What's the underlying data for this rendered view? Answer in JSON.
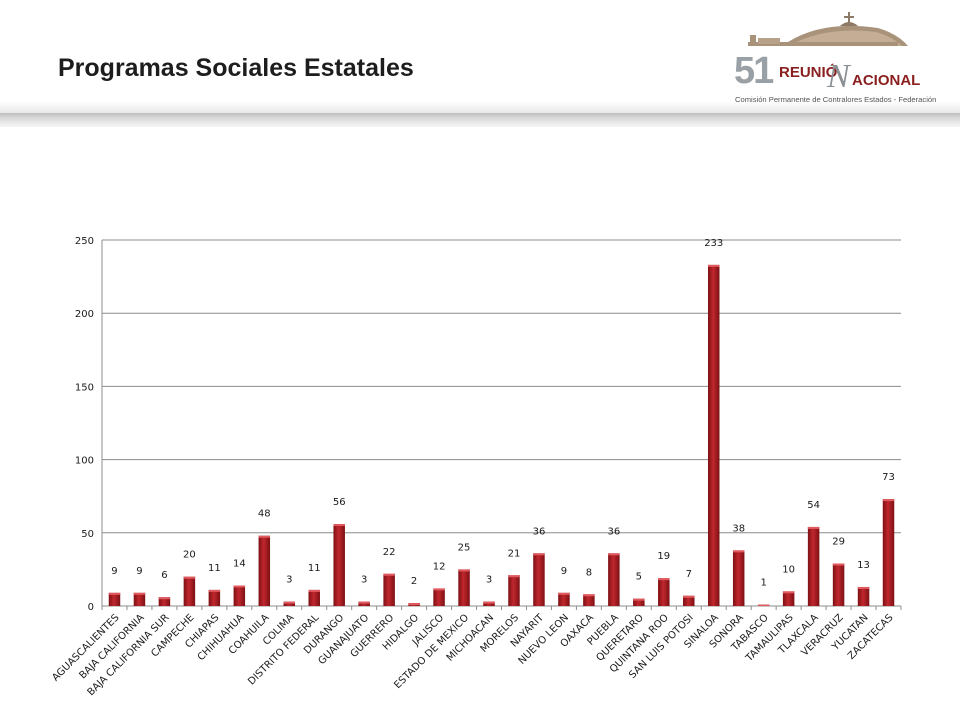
{
  "header": {
    "title": "Programas Sociales Estatales",
    "logo": {
      "number": "51",
      "word1": "REUNIÓ",
      "letter": "N",
      "word2": "ACIONAL",
      "subtitle": "Comisión Permanente de Contralores Estados - Federación"
    }
  },
  "colors": {
    "bar": "#c0272d",
    "bar_dark": "#7d1014",
    "grid": "#8c8c8c",
    "text": "#1a1a1a"
  },
  "chart_data": {
    "type": "bar",
    "categories": [
      "AGUASCALIENTES",
      "BAJA CALIFORNIA",
      "BAJA CALIFORNIA SUR",
      "CAMPECHE",
      "CHIAPAS",
      "CHIHUAHUA",
      "COAHUILA",
      "COLIMA",
      "DISTRITO FEDERAL",
      "DURANGO",
      "GUANAJUATO",
      "GUERRERO",
      "HIDALGO",
      "JALISCO",
      "ESTADO DE MEXICO",
      "MICHOACAN",
      "MORELOS",
      "NAYARIT",
      "NUEVO LEON",
      "OAXACA",
      "PUEBLA",
      "QUERETARO",
      "QUINTANA ROO",
      "SAN LUIS POTOSI",
      "SINALOA",
      "SONORA",
      "TABASCO",
      "TAMAULIPAS",
      "TLAXCALA",
      "VERACRUZ",
      "YUCATAN",
      "ZACATECAS"
    ],
    "values": [
      9,
      9,
      6,
      20,
      11,
      14,
      48,
      3,
      11,
      56,
      3,
      22,
      2,
      12,
      25,
      3,
      21,
      36,
      9,
      8,
      36,
      5,
      19,
      7,
      233,
      38,
      1,
      10,
      54,
      29,
      13,
      73
    ],
    "ylim": [
      0,
      250
    ],
    "yticks": [
      "0",
      "50",
      "100",
      "150",
      "200",
      "250"
    ],
    "grid": true,
    "legend": "none",
    "title": "",
    "xlabel": "",
    "ylabel": ""
  }
}
